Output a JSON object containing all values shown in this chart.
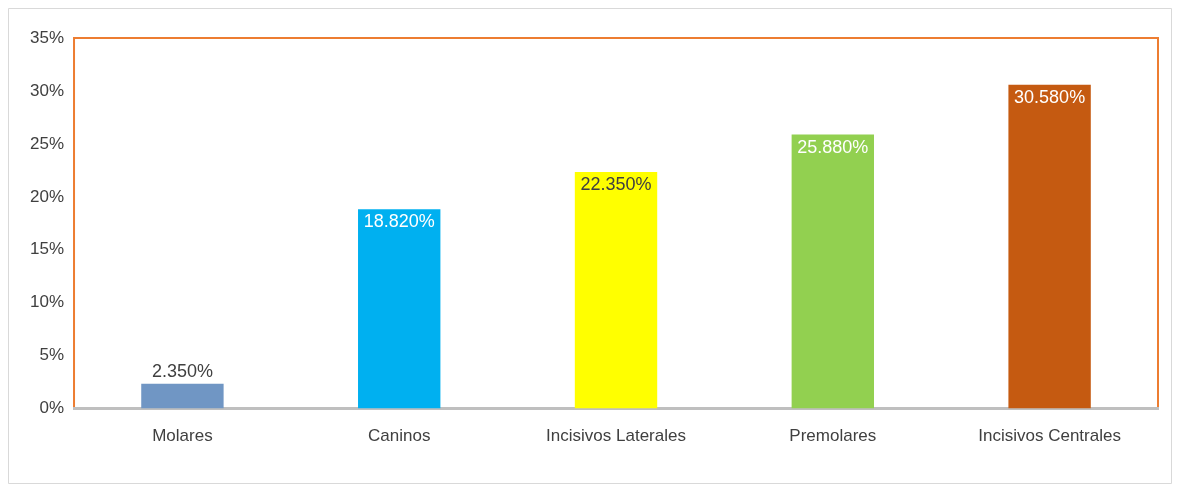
{
  "chart_data": {
    "type": "bar",
    "categories": [
      "Molares",
      "Caninos",
      "Incisivos Laterales",
      "Premolares",
      "Incisivos Centrales"
    ],
    "values": [
      2.35,
      18.82,
      22.35,
      25.88,
      30.58
    ],
    "colors": [
      "#7096c4",
      "#00b0f0",
      "#ffff00",
      "#92d050",
      "#c55a11"
    ],
    "value_labels": [
      "2.350%",
      "18.820%",
      "22.350%",
      "25.880%",
      "30.580%"
    ],
    "ylim": [
      0,
      35
    ],
    "yticks": [
      {
        "value": 0,
        "label": "0%"
      },
      {
        "value": 5,
        "label": "5%"
      },
      {
        "value": 10,
        "label": "10%"
      },
      {
        "value": 15,
        "label": "15%"
      },
      {
        "value": 20,
        "label": "20%"
      },
      {
        "value": 25,
        "label": "25%"
      },
      {
        "value": 30,
        "label": "30%"
      },
      {
        "value": 35,
        "label": "35%"
      }
    ],
    "grid": false,
    "legend": false
  }
}
